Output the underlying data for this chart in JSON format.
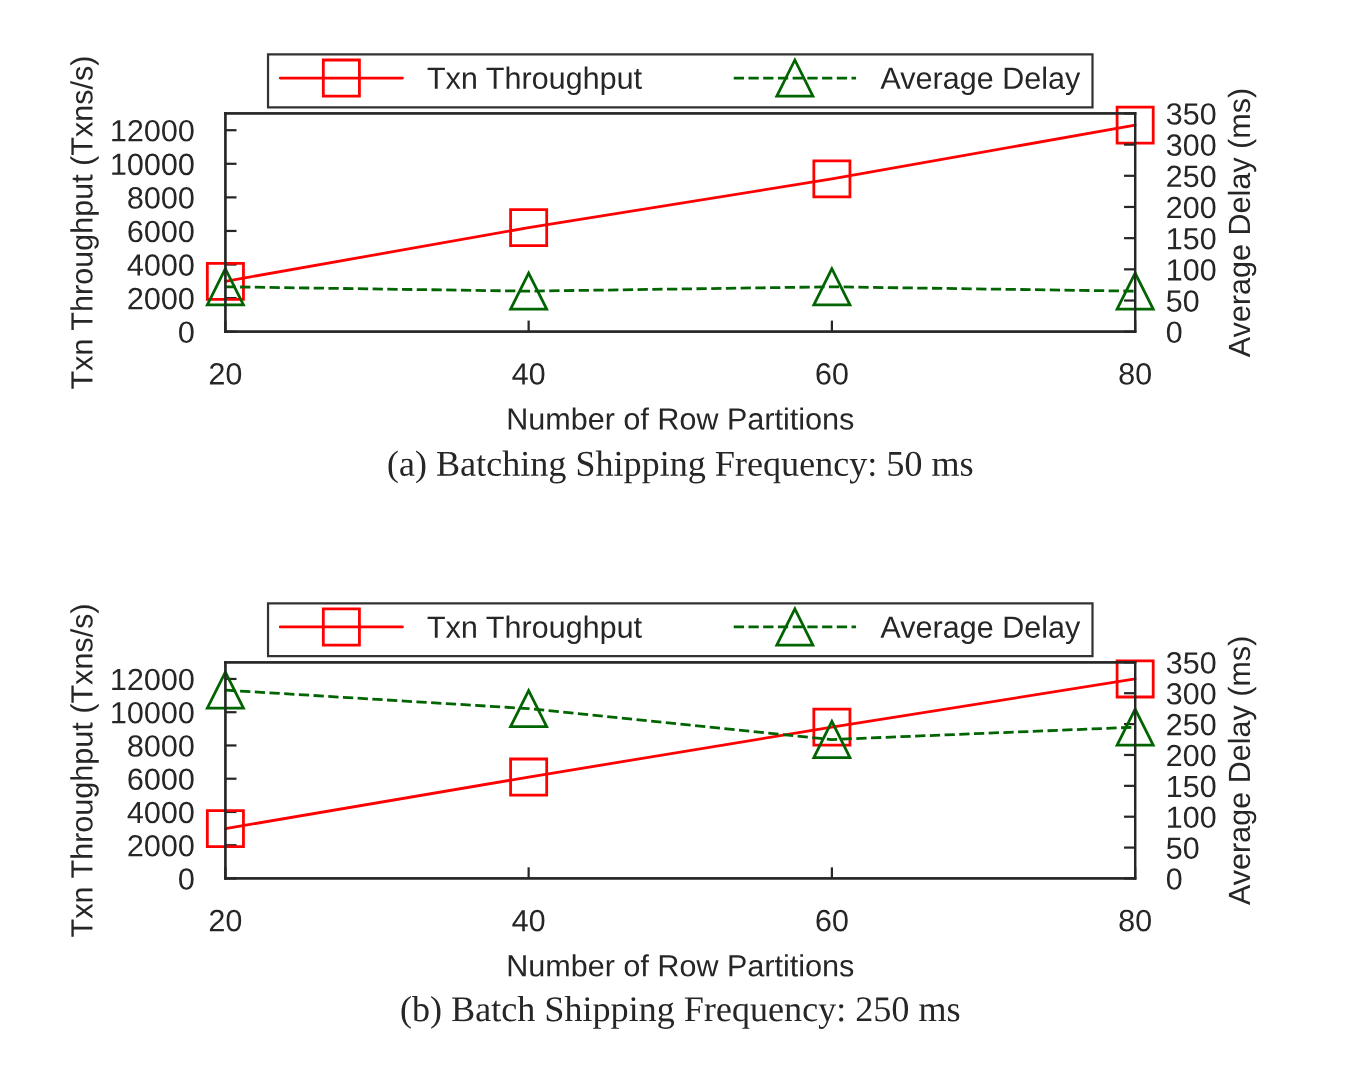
{
  "chart_data": [
    {
      "type": "line",
      "title": "(a) Batching Shipping Frequency: 50 ms",
      "xlabel": "Number of Row Partitions",
      "ylabel": "Txn Throughput (Txns/s)",
      "y2label": "Average Delay (ms)",
      "legend": "top",
      "grid": false,
      "x": [
        20,
        40,
        60,
        80
      ],
      "xlim": [
        20,
        80
      ],
      "xticks": [
        20,
        40,
        60,
        80
      ],
      "ylim": [
        0,
        13000
      ],
      "yticks": [
        0,
        2000,
        4000,
        6000,
        8000,
        10000,
        12000
      ],
      "y2lim": [
        0,
        350
      ],
      "y2ticks": [
        0,
        50,
        100,
        150,
        200,
        250,
        300,
        350
      ],
      "series": [
        {
          "name": "Txn Throughput",
          "color": "#ff0000",
          "marker": "square",
          "line_style": "solid",
          "values": [
            3000,
            6200,
            9100,
            12300
          ]
        },
        {
          "name": "Average Delay",
          "color": "#006400",
          "marker": "triangle",
          "line_style": "dashed",
          "axis": "y2",
          "values": [
            72,
            65,
            72,
            65
          ]
        }
      ]
    },
    {
      "type": "line",
      "title": "(b) Batch Shipping Frequency: 250 ms",
      "xlabel": "Number of Row Partitions",
      "ylabel": "Txn Throughput (Txns/s)",
      "y2label": "Average Delay (ms)",
      "legend": "top",
      "grid": false,
      "x": [
        20,
        40,
        60,
        80
      ],
      "xlim": [
        20,
        80
      ],
      "xticks": [
        20,
        40,
        60,
        80
      ],
      "ylim": [
        0,
        13000
      ],
      "yticks": [
        0,
        2000,
        4000,
        6000,
        8000,
        10000,
        12000
      ],
      "y2lim": [
        0,
        350
      ],
      "y2ticks": [
        0,
        50,
        100,
        150,
        200,
        250,
        300,
        350
      ],
      "series": [
        {
          "name": "Txn Throughput",
          "color": "#ff0000",
          "marker": "square",
          "line_style": "solid",
          "values": [
            3000,
            6100,
            9100,
            12000
          ]
        },
        {
          "name": "Average Delay",
          "color": "#006400",
          "marker": "triangle",
          "line_style": "dashed",
          "axis": "y2",
          "values": [
            305,
            275,
            225,
            245
          ]
        }
      ]
    }
  ]
}
